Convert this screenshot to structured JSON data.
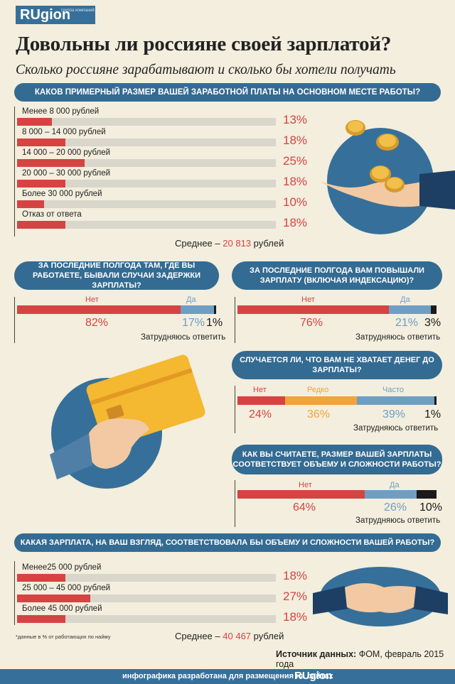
{
  "logo": {
    "text": "RUgion",
    "tag": "группа компаний"
  },
  "title": "Довольны ли россияне своей зарплатой?",
  "subtitle": "Сколько россияне зарабатывают и сколько бы хотели получать",
  "q1": {
    "question": "КАКОВ ПРИМЕРНЫЙ РАЗМЕР ВАШЕЙ ЗАРАБОТНОЙ ПЛАТЫ НА ОСНОВНОМ МЕСТЕ РАБОТЫ?",
    "rows": [
      {
        "label": "Менее 8 000 рублей",
        "pct": "13%",
        "value": 13
      },
      {
        "label": "8 000 – 14 000 рублей",
        "pct": "18%",
        "value": 18
      },
      {
        "label": "14 000 – 20 000 рублей",
        "pct": "25%",
        "value": 25
      },
      {
        "label": "20 000 – 30 000 рублей",
        "pct": "18%",
        "value": 18
      },
      {
        "label": "Более 30 000 рублей",
        "pct": "10%",
        "value": 10
      },
      {
        "label": "Отказ от ответа",
        "pct": "18%",
        "value": 18
      }
    ],
    "avg_label": "Среднее –",
    "avg_value": "20 813",
    "avg_unit": "рублей"
  },
  "q2": {
    "question": "ЗА ПОСЛЕДНИЕ ПОЛГОДА ТАМ, ГДЕ ВЫ РАБОТАЕТЕ, БЫВАЛИ СЛУЧАИ ЗАДЕРЖКИ ЗАРПЛАТЫ?",
    "no_label": "Нет",
    "yes_label": "Да",
    "no_pct": "82%",
    "yes_pct": "17%",
    "dk_pct": "1%",
    "no": 82,
    "yes": 17,
    "dk": 1,
    "dk_label": "Затрудняюсь ответить"
  },
  "q3": {
    "question": "ЗА ПОСЛЕДНИЕ ПОЛГОДА ВАМ ПОВЫШАЛИ ЗАРПЛАТУ (ВКЛЮЧАЯ ИНДЕКСАЦИЮ)?",
    "no_label": "Нет",
    "yes_label": "Да",
    "no_pct": "76%",
    "yes_pct": "21%",
    "dk_pct": "3%",
    "no": 76,
    "yes": 21,
    "dk": 3,
    "dk_label": "Затрудняюсь ответить"
  },
  "q4": {
    "question": "СЛУЧАЕТСЯ ЛИ, ЧТО ВАМ НЕ ХВАТАЕТ ДЕНЕГ ДО ЗАРПЛАТЫ?",
    "no_label": "Нет",
    "rarely_label": "Редко",
    "often_label": "Часто",
    "no_pct": "24%",
    "rarely_pct": "36%",
    "often_pct": "39%",
    "dk_pct": "1%",
    "no": 24,
    "rarely": 36,
    "often": 39,
    "dk": 1,
    "dk_label": "Затрудняюсь ответить"
  },
  "q5": {
    "question": "КАК ВЫ СЧИТАЕТЕ, РАЗМЕР ВАШЕЙ ЗАРПЛАТЫ СООТВЕТСТВУЕТ ОБЪЕМУ И СЛОЖНОСТИ РАБОТЫ?",
    "no_label": "Нет",
    "yes_label": "Да",
    "no_pct": "64%",
    "yes_pct": "26%",
    "dk_pct": "10%",
    "no": 64,
    "yes": 26,
    "dk": 10,
    "dk_label": "Затрудняюсь ответить"
  },
  "q6": {
    "question": "КАКАЯ ЗАРПЛАТА, НА ВАШ ВЗГЛЯД, СООТВЕТСТВОВАЛА БЫ ОБЪЕМУ И СЛОЖНОСТИ ВАШЕЙ РАБОТЫ?",
    "rows": [
      {
        "label": "Менее25 000 рублей",
        "pct": "18%",
        "value": 18
      },
      {
        "label": "25 000 – 45 000 рублей",
        "pct": "27%",
        "value": 27
      },
      {
        "label": "Более 45 000 рублей",
        "pct": "18%",
        "value": 18
      }
    ],
    "avg_label": "Среднее –",
    "avg_value": "40 467",
    "avg_unit": "рублей"
  },
  "note": "*данные в % от работающих по найму",
  "source_label": "Источник данных:",
  "source_value": "ФОМ, февраль 2015 года",
  "footer_text": "инфографика разработана для размещения на сайтах",
  "footer_logo": "RUgion",
  "colors": {
    "red": "#d64343",
    "blue": "#6e9ec4",
    "orange": "#f0a43a",
    "gray": "#d9d6cc",
    "dark": "#1a1a1a",
    "navy": "#336b92"
  },
  "icons": [
    "coins-hand-icon",
    "credit-card-hand-icon",
    "handshake-icon"
  ]
}
